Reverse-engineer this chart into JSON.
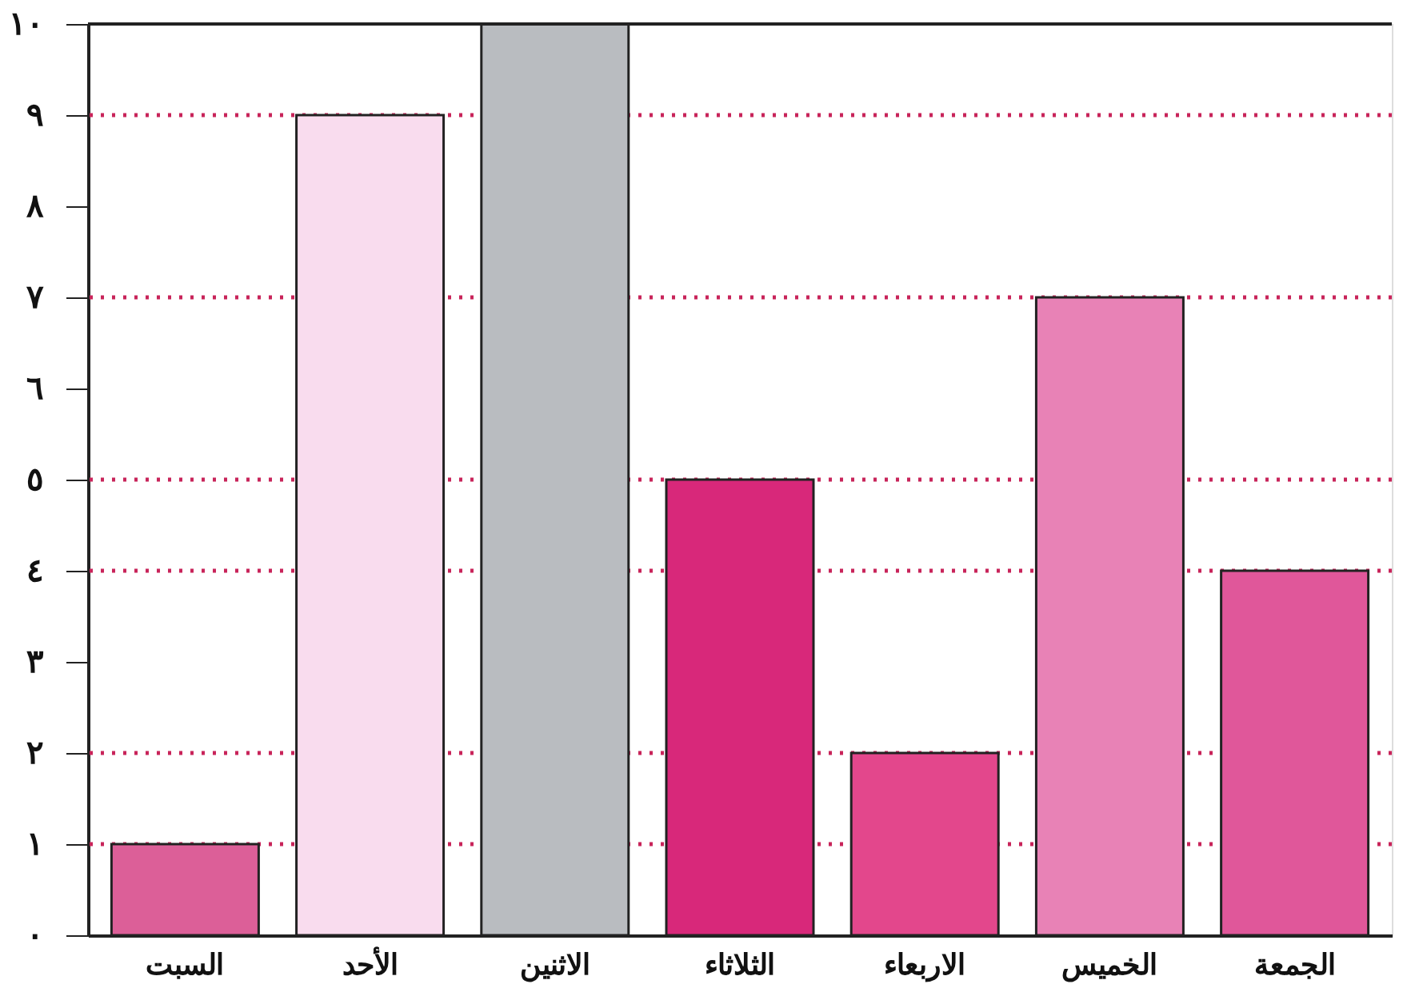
{
  "chart_data": {
    "type": "bar",
    "categories": [
      "السبت",
      "الأحد",
      "الاثنين",
      "الثلاثاء",
      "الاربعاء",
      "الخميس",
      "الجمعة"
    ],
    "values": [
      1,
      9,
      10,
      5,
      2,
      7,
      4
    ],
    "colors": [
      "#dc5f98",
      "#f9dcee",
      "#b9bcc0",
      "#d8287a",
      "#e3478c",
      "#e882b6",
      "#e0579a"
    ],
    "ylim": [
      0,
      10
    ],
    "yticks": [
      {
        "value": 0,
        "label": "٠"
      },
      {
        "value": 1,
        "label": "١"
      },
      {
        "value": 2,
        "label": "٢"
      },
      {
        "value": 3,
        "label": "٣"
      },
      {
        "value": 4,
        "label": "٤"
      },
      {
        "value": 5,
        "label": "٥"
      },
      {
        "value": 6,
        "label": "٦"
      },
      {
        "value": 7,
        "label": "٧"
      },
      {
        "value": 8,
        "label": "٨"
      },
      {
        "value": 9,
        "label": "٩"
      },
      {
        "value": 10,
        "label": "١٠"
      }
    ],
    "ref_lines": [
      {
        "axis": "y",
        "value": 1,
        "color": "#c8245a",
        "line_style": "dotted"
      },
      {
        "axis": "y",
        "value": 2,
        "color": "#c8245a",
        "line_style": "dotted"
      },
      {
        "axis": "y",
        "value": 4,
        "color": "#c8245a",
        "line_style": "dotted"
      },
      {
        "axis": "y",
        "value": 5,
        "color": "#c8245a",
        "line_style": "dotted"
      },
      {
        "axis": "y",
        "value": 7,
        "color": "#c8245a",
        "line_style": "dotted"
      },
      {
        "axis": "y",
        "value": 9,
        "color": "#c8245a",
        "line_style": "dotted"
      }
    ],
    "grid": false
  }
}
